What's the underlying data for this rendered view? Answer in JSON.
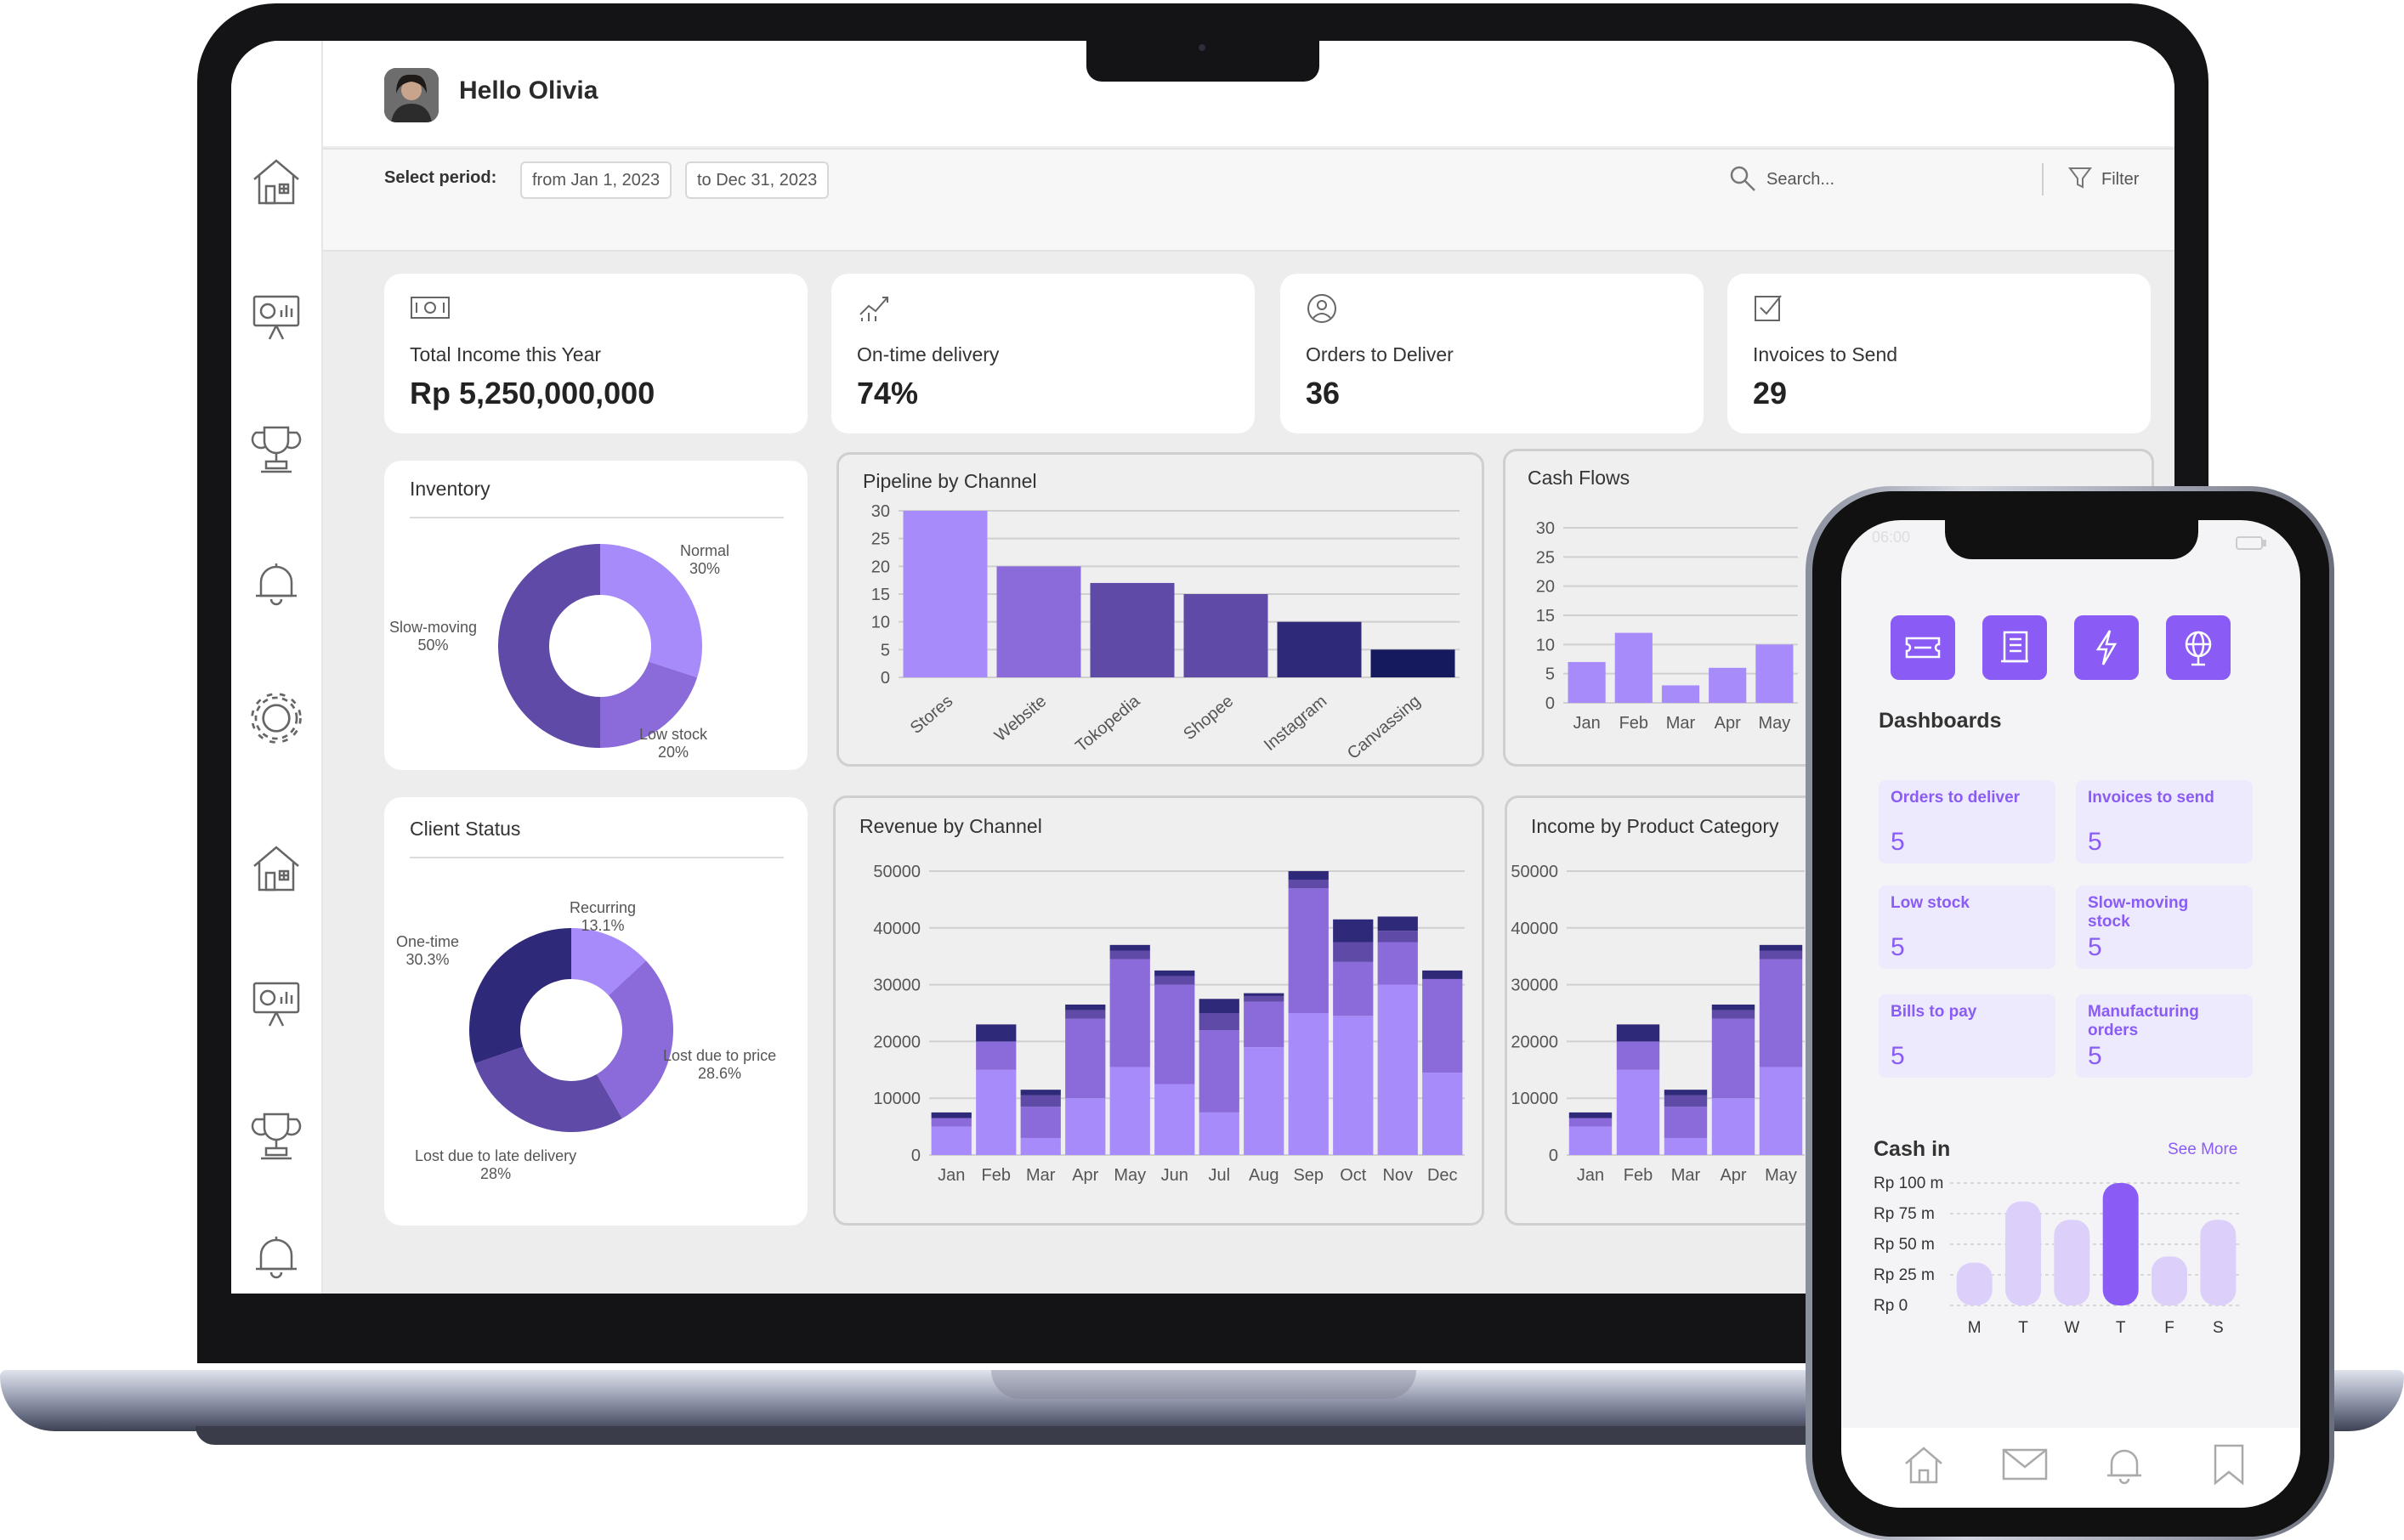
{
  "header": {
    "greeting": "Hello Olivia"
  },
  "filters": {
    "period_label": "Select period:",
    "from": "from Jan 1, 2023",
    "to": "to Dec 31, 2023",
    "search_placeholder": "Search...",
    "filter_label": "Filter"
  },
  "sidebar": {
    "icons": [
      "house-icon",
      "presentation-chart-icon",
      "trophy-icon",
      "bell-icon",
      "gear-icon",
      "house-icon",
      "presentation-chart-icon",
      "trophy-icon",
      "bell-icon"
    ]
  },
  "kpis": [
    {
      "label": "Total Income this Year",
      "value": "Rp 5,250,000,000",
      "icon": "money-icon"
    },
    {
      "label": "On-time delivery",
      "value": "74%",
      "icon": "trend-chart-icon"
    },
    {
      "label": "Orders to Deliver",
      "value": "36",
      "icon": "user-circle-icon"
    },
    {
      "label": "Invoices to Send",
      "value": "29",
      "icon": "checkbox-icon"
    }
  ],
  "colors": {
    "c1": "#a78bfa",
    "c2": "#8b6ad9",
    "c3": "#5f4aa8",
    "c4": "#2f297a",
    "c5": "#151a5e",
    "accent": "#8a5cf5"
  },
  "chart_data": [
    {
      "title": "Inventory",
      "type": "pie",
      "slices": [
        {
          "label": "Normal",
          "value": 30,
          "pct": "30%"
        },
        {
          "label": "Low stock",
          "value": 20,
          "pct": "20%"
        },
        {
          "label": "Slow-moving",
          "value": 50,
          "pct": "50%"
        }
      ]
    },
    {
      "title": "Pipeline by Channel",
      "type": "bar",
      "categories": [
        "Stores",
        "Website",
        "Tokopedia",
        "Shopee",
        "Instagram",
        "Canvassing"
      ],
      "values": [
        30,
        20,
        17,
        15,
        10,
        5
      ],
      "yticks": [
        "30",
        "25",
        "20",
        "15",
        "10",
        "5",
        "0"
      ],
      "ylim": [
        0,
        30
      ]
    },
    {
      "title": "Cash Flows",
      "type": "bar",
      "categories": [
        "Jan",
        "Feb",
        "Mar",
        "Apr",
        "May"
      ],
      "values": [
        7,
        12,
        3,
        6,
        10
      ],
      "yticks": [
        "30",
        "25",
        "20",
        "15",
        "10",
        "5",
        "0"
      ],
      "ylim": [
        0,
        30
      ]
    },
    {
      "title": "Client Status",
      "type": "pie",
      "slices": [
        {
          "label": "Recurring",
          "value": 13.1,
          "pct": "13.1%"
        },
        {
          "label": "Lost due to price",
          "value": 28.6,
          "pct": "28.6%"
        },
        {
          "label": "Lost due to late delivery",
          "value": 28,
          "pct": "28%"
        },
        {
          "label": "One-time",
          "value": 30.3,
          "pct": "30.3%"
        }
      ]
    },
    {
      "title": "Revenue by Channel",
      "type": "bar",
      "stacked": true,
      "categories": [
        "Jan",
        "Feb",
        "Mar",
        "Apr",
        "May",
        "Jun",
        "Jul",
        "Aug",
        "Sep",
        "Oct",
        "Nov",
        "Dec"
      ],
      "yticks": [
        "50000",
        "40000",
        "30000",
        "20000",
        "10000",
        "0"
      ],
      "ylim": [
        0,
        50000
      ],
      "series": [
        {
          "values": [
            5000,
            15000,
            3000,
            10000,
            15500,
            12500,
            7500,
            19000,
            25000,
            24500,
            30000,
            14500
          ]
        },
        {
          "values": [
            1500,
            5000,
            5500,
            14000,
            19000,
            17500,
            14500,
            8000,
            22000,
            9500,
            7500,
            16500
          ]
        },
        {
          "values": [
            0,
            0,
            2000,
            1500,
            1500,
            1500,
            3000,
            1000,
            1500,
            3500,
            2000,
            0
          ]
        },
        {
          "values": [
            1000,
            3000,
            1000,
            1000,
            1000,
            1000,
            2500,
            500,
            1500,
            4000,
            2500,
            1500
          ]
        }
      ]
    },
    {
      "title": "Income by Product Category",
      "type": "bar",
      "stacked": true,
      "categories": [
        "Jan",
        "Feb",
        "Mar",
        "Apr",
        "May"
      ],
      "yticks": [
        "50000",
        "40000",
        "30000",
        "20000",
        "10000",
        "0"
      ],
      "ylim": [
        0,
        50000
      ],
      "series": [
        {
          "values": [
            5000,
            15000,
            3000,
            10000,
            15500
          ]
        },
        {
          "values": [
            1500,
            5000,
            5500,
            14000,
            19000
          ]
        },
        {
          "values": [
            0,
            0,
            2000,
            1500,
            1500
          ]
        },
        {
          "values": [
            1000,
            3000,
            1000,
            1000,
            1000
          ]
        }
      ]
    },
    {
      "title": "Cash in",
      "type": "bar",
      "categories": [
        "M",
        "T",
        "W",
        "T",
        "F",
        "S"
      ],
      "values": [
        35,
        85,
        70,
        100,
        40,
        70
      ],
      "yticks": [
        "Rp 100 m",
        "Rp 75 m",
        "Rp 50 m",
        "Rp 25 m",
        "Rp 0"
      ],
      "ylim": [
        0,
        100
      ]
    }
  ],
  "phone": {
    "time": "06:00",
    "section_title": "Dashboards",
    "apps": [
      "ticket-icon",
      "document-icon",
      "lightning-icon",
      "globe-icon"
    ],
    "tiles": [
      {
        "label": "Orders to deliver",
        "value": "5"
      },
      {
        "label": "Invoices to send",
        "value": "5"
      },
      {
        "label": "Low stock",
        "value": "5"
      },
      {
        "label": "Slow-moving stock",
        "value": "5"
      },
      {
        "label": "Bills to pay",
        "value": "5"
      },
      {
        "label": "Manufacturing orders",
        "value": "5"
      }
    ],
    "cash_title": "Cash in",
    "see_more": "See More",
    "nav": [
      "home-icon",
      "mail-icon",
      "bell-icon",
      "bookmark-icon"
    ]
  }
}
